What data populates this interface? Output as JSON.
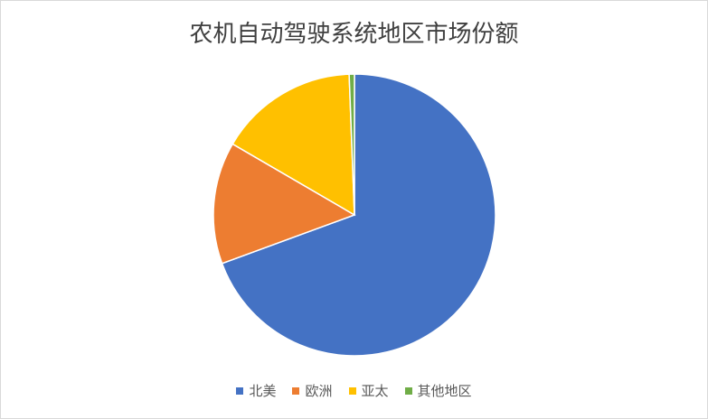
{
  "chart_data": {
    "type": "pie",
    "title": "农机自动驾驶系统地区市场份额",
    "categories": [
      "北美",
      "欧洲",
      "亚太",
      "其他地区"
    ],
    "values": [
      69.4,
      14.0,
      16.0,
      0.6
    ],
    "unit": "%",
    "colors": [
      "#4472C4",
      "#ED7D31",
      "#FFC000",
      "#70AD47"
    ],
    "start_angle": "12 o'clock, clockwise",
    "legend_position": "bottom"
  }
}
